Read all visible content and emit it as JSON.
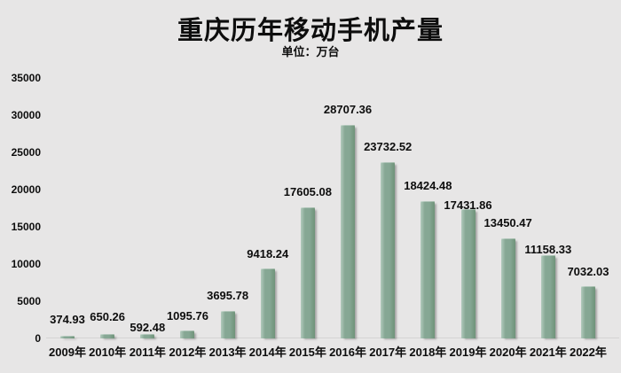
{
  "colors": {
    "background": "#e7e6e6",
    "bar": "#86a794",
    "bar_highlight": "#b2cabc",
    "bar_shadow_edge": "#6f9379",
    "text": "#0d0d0d",
    "axis_line": "#c7c6c6"
  },
  "chart_data": {
    "type": "bar",
    "title": "重庆历年移动手机产量",
    "unit_label": "单位：万台",
    "categories": [
      "2009年",
      "2010年",
      "2011年",
      "2012年",
      "2013年",
      "2014年",
      "2015年",
      "2016年",
      "2017年",
      "2018年",
      "2019年",
      "2020年",
      "2021年",
      "2022年"
    ],
    "values": [
      374.93,
      650.26,
      592.48,
      1095.76,
      3695.78,
      9418.24,
      17605.08,
      28707.36,
      23732.52,
      18424.48,
      17431.86,
      13450.47,
      11158.33,
      7032.03
    ],
    "value_labels": [
      "374.93",
      "650.26",
      "592.48",
      "1095.76",
      "3695.78",
      "9418.24",
      "17605.08",
      "28707.36",
      "23732.52",
      "18424.48",
      "17431.86",
      "13450.47",
      "11158.33",
      "7032.03"
    ],
    "xlabel": "",
    "ylabel": "",
    "ylim": [
      0,
      35000
    ],
    "ytick_interval": 5000,
    "ytick_values": [
      0,
      5000,
      10000,
      15000,
      20000,
      25000,
      30000,
      35000
    ],
    "ytick_labels": [
      "0",
      "5000",
      "10000",
      "15000",
      "20000",
      "25000",
      "30000",
      "35000"
    ],
    "grid": "off",
    "legend": "none",
    "data_labels": "outside-end"
  }
}
